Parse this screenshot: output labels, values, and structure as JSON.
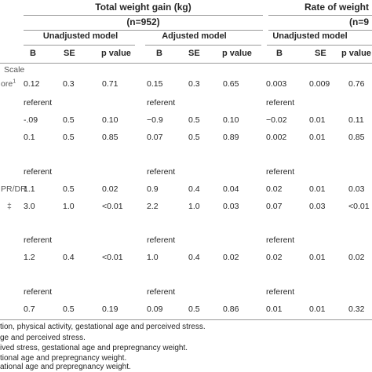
{
  "table": {
    "group_titles": [
      "Total weight gain (kg)",
      "Rate of weight"
    ],
    "group_n": [
      "(n=952)",
      "(n=9"
    ],
    "models": [
      "Unadjusted model",
      "Adjusted model",
      "Unadjusted model"
    ],
    "columns": [
      "B",
      "SE",
      "p value",
      "B",
      "SE",
      "p value",
      "B",
      "SE",
      "p value"
    ],
    "rows": [
      {
        "label": "Scale",
        "sup": "",
        "cells": [
          "",
          "",
          "",
          "",
          "",
          "",
          "",
          "",
          ""
        ]
      },
      {
        "label": "ore",
        "sup": "1",
        "cells": [
          "0.12",
          "0.3",
          "0.71",
          "0.15",
          "0.3",
          "0.65",
          "0.003",
          "0.009",
          "0.76"
        ]
      },
      {
        "label": "",
        "sup": "",
        "cells": [
          "referent",
          "",
          "",
          "referent",
          "",
          "",
          "referent",
          "",
          ""
        ]
      },
      {
        "label": "",
        "sup": "",
        "cells": [
          "-.09",
          "0.5",
          "0.10",
          "−0.9",
          "0.5",
          "0.10",
          "−0.02",
          "0.01",
          "0.11"
        ]
      },
      {
        "label": "",
        "sup": "",
        "cells": [
          "0.1",
          "0.5",
          "0.85",
          "0.07",
          "0.5",
          "0.89",
          "0.002",
          "0.01",
          "0.85"
        ]
      },
      {
        "label": "",
        "sup": "",
        "cells": [
          "referent",
          "",
          "",
          "referent",
          "",
          "",
          "referent",
          "",
          ""
        ]
      },
      {
        "label": "PR/DR",
        "sup": "",
        "cells": [
          "1.1",
          "0.5",
          "0.02",
          "0.9",
          "0.4",
          "0.04",
          "0.02",
          "0.01",
          "0.03"
        ]
      },
      {
        "label": "‡",
        "sup": "",
        "cells": [
          "3.0",
          "1.0",
          "<0.01",
          "2.2",
          "1.0",
          "0.03",
          "0.07",
          "0.03",
          "<0.01"
        ]
      },
      {
        "label": "",
        "sup": "",
        "cells": [
          "referent",
          "",
          "",
          "referent",
          "",
          "",
          "referent",
          "",
          ""
        ]
      },
      {
        "label": "",
        "sup": "",
        "cells": [
          "1.2",
          "0.4",
          "<0.01",
          "1.0",
          "0.4",
          "0.02",
          "0.02",
          "0.01",
          "0.02"
        ]
      },
      {
        "label": "",
        "sup": "",
        "cells": [
          "referent",
          "",
          "",
          "referent",
          "",
          "",
          "referent",
          "",
          ""
        ]
      },
      {
        "label": "",
        "sup": "",
        "cells": [
          "0.7",
          "0.5",
          "0.19",
          "0.09",
          "0.5",
          "0.86",
          "0.01",
          "0.01",
          "0.32"
        ]
      }
    ]
  },
  "footnotes": [
    "tion, physical activity, gestational age and perceived stress.",
    "ge and perceived stress.",
    "ived stress, gestational age and prepregnancy weight.",
    "tional age and prepregnancy weight.",
    "ational age and prepregnancy weight."
  ]
}
